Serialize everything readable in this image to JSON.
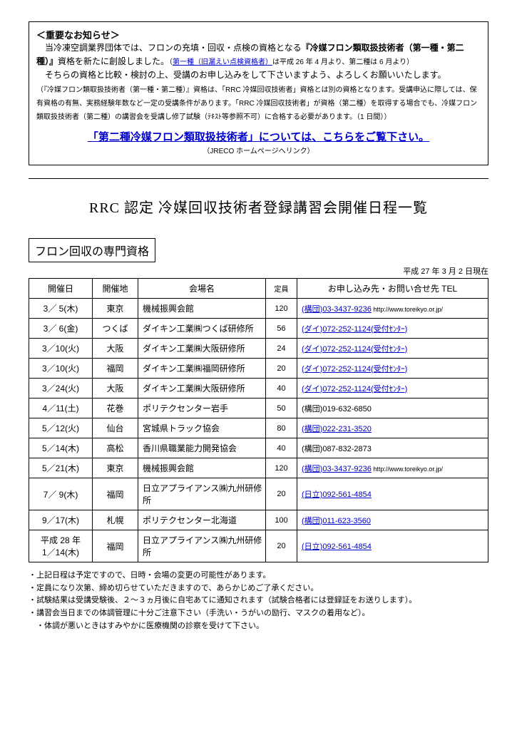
{
  "notice": {
    "title": "＜重要なお知らせ＞",
    "line1a": "当冷凍空調業界団体では、フロンの充填・回収・点検の資格となる",
    "line1b": "『冷媒フロン類取扱技術者（第一種・第二種）』",
    "line1c": "資格を新たに創設しました。",
    "line1d_pre": "（",
    "line1d_link": "第一種（旧漏えい点検資格者）",
    "line1d_post": "は平成 26 年 4 月より、第二種は 6 月より）",
    "line2": "そちらの資格と比較・検討の上、受講のお申し込みをして下さいますよう、よろしくお願いいたします。",
    "line3": "（『冷媒フロン類取扱技術者（第一種・第二種）』資格は、「RRC 冷媒回収技術者」資格とは別の資格となります。受講申込に際しては、保有資格の有無、実務経験年数など一定の受講条件があります。「RRC 冷媒回収技術者」が資格（第二種）を取得する場合でも、冷媒フロン類取扱技術者（第二種）の講習会を受講し修了試験（ﾃｷｽﾄ等参照不可）に合格する必要があります。（1 日間））",
    "link_label": "「第二種冷媒フロン類取扱技術者」については、こちらをご覧下さい。",
    "link_sub": "（JRECO ホームページへリンク）"
  },
  "main_title": "RRC 認定 冷媒回収技術者登録講習会開催日程一覧",
  "subtitle": "フロン回収の専門資格",
  "as_of": "平成 27 年 3 月 2 日現在",
  "headers": {
    "date": "開催日",
    "place": "開催地",
    "venue": "会場名",
    "cap": "定員",
    "contact": "お申し込み先・お問い合せ先 TEL"
  },
  "rows": [
    {
      "date": "3／ 5(木)",
      "place": "東京",
      "venue": "機械振興会館",
      "cap": "120",
      "tel": "(構団)03-3437-9236",
      "tel_link": true,
      "url": "http://www.toreikyo.or.jp/"
    },
    {
      "date": "3／ 6(金)",
      "place": "つくば",
      "venue": "ダイキン工業㈱つくば研修所",
      "cap": "56",
      "tel": "(ダイ)072-252-1124(受付ｾﾝﾀｰ)",
      "tel_link": true
    },
    {
      "date": "3／10(火)",
      "place": "大阪",
      "venue": "ダイキン工業㈱大阪研修所",
      "cap": "24",
      "tel": "(ダイ)072-252-1124(受付ｾﾝﾀｰ)",
      "tel_link": true
    },
    {
      "date": "3／10(火)",
      "place": "福岡",
      "venue": "ダイキン工業㈱福岡研修所",
      "cap": "20",
      "tel": "(ダイ)072-252-1124(受付ｾﾝﾀｰ)",
      "tel_link": true
    },
    {
      "date": "3／24(火)",
      "place": "大阪",
      "venue": "ダイキン工業㈱大阪研修所",
      "cap": "40",
      "tel": "(ダイ)072-252-1124(受付ｾﾝﾀｰ)",
      "tel_link": true
    },
    {
      "date": "4／11(土)",
      "place": "花巻",
      "venue": "ポリテクセンター岩手",
      "cap": "50",
      "tel": "(構団)019-632-6850",
      "tel_link": false
    },
    {
      "date": "5／12(火)",
      "place": "仙台",
      "venue": "宮城県トラック協会",
      "cap": "80",
      "tel": "(構団)022-231-3520",
      "tel_link": true
    },
    {
      "date": "5／14(木)",
      "place": "高松",
      "venue": "香川県職業能力開発協会",
      "cap": "40",
      "tel": "(構団)087-832-2873",
      "tel_link": false
    },
    {
      "date": "5／21(木)",
      "place": "東京",
      "venue": "機械振興会館",
      "cap": "120",
      "tel": "(構団)03-3437-9236",
      "tel_link": true,
      "url": "http://www.toreikyo.or.jp/"
    },
    {
      "date": "7／ 9(木)",
      "place": "福岡",
      "venue": "日立アプライアンス㈱九州研修所",
      "cap": "20",
      "tel": "(日立)092-561-4854",
      "tel_link": true
    },
    {
      "date": "9／17(木)",
      "place": "札幌",
      "venue": "ポリテクセンター北海道",
      "cap": "100",
      "tel": "(構団)011-623-3560",
      "tel_link": true
    },
    {
      "date": "平成 28 年\n1／14(木)",
      "place": "福岡",
      "venue": "日立アプライアンス㈱九州研修所",
      "cap": "20",
      "tel": "(日立)092-561-4854",
      "tel_link": true
    }
  ],
  "bullets": [
    "上記日程は予定ですので、日時・会場の変更の可能性があります。",
    "定員になり次第、締め切らせていただきますので、あらかじめご了承ください。",
    "試験結果は受講受験後、２～３ヵ月後に自宅あてに通知されます（試験合格者には登録証をお送りします）。",
    "講習会当日までの体調管理に十分ご注意下さい（手洗い・うがいの励行、マスクの着用など）。"
  ],
  "bullet_tail": "体調が悪いときはすみやかに医療機関の診察を受けて下さい。"
}
